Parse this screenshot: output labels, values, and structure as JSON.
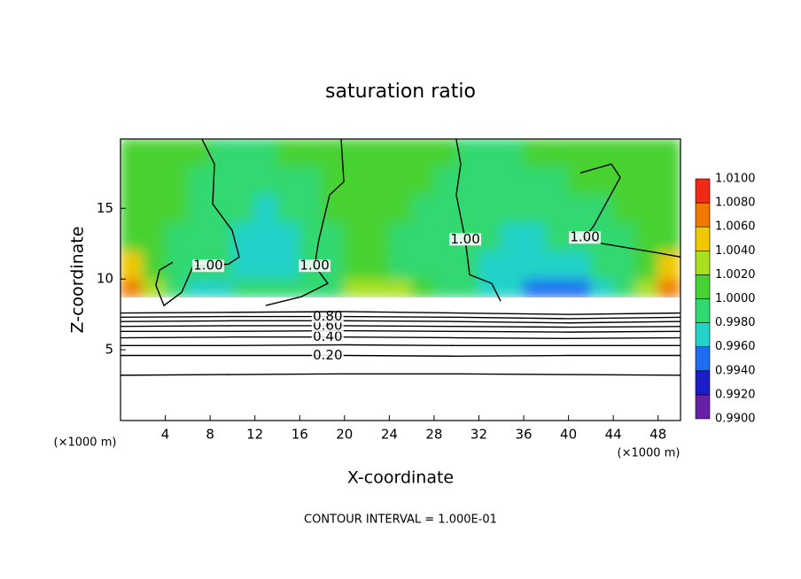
{
  "chart_data": {
    "type": "contour",
    "title": "saturation ratio",
    "x_label": "X-coordinate",
    "y_label": "Z-coordinate",
    "x_unit": "(×1000 m)",
    "footnote": "CONTOUR INTERVAL = 1.000E-01",
    "xlim": [
      0,
      50
    ],
    "xticks": [
      4,
      8,
      12,
      16,
      20,
      24,
      28,
      32,
      36,
      40,
      44,
      48
    ],
    "ylim": [
      0,
      19.9
    ],
    "yticks": [
      5,
      10,
      15
    ],
    "colorbar": {
      "levels": [
        {
          "value": 0.99,
          "label": "0.9900"
        },
        {
          "value": 0.992,
          "label": "0.9920"
        },
        {
          "value": 0.994,
          "label": "0.9940"
        },
        {
          "value": 0.996,
          "label": "0.9960"
        },
        {
          "value": 0.998,
          "label": "0.9980"
        },
        {
          "value": 1.0,
          "label": "1.0000"
        },
        {
          "value": 1.002,
          "label": "1.0020"
        },
        {
          "value": 1.004,
          "label": "1.0040"
        },
        {
          "value": 1.006,
          "label": "1.0060"
        },
        {
          "value": 1.008,
          "label": "1.0080"
        },
        {
          "value": 1.01,
          "label": "1.0100"
        }
      ],
      "colors": [
        "#6a1fa8",
        "#1c1cc8",
        "#1e6cf0",
        "#22d2c8",
        "#30d870",
        "#46d232",
        "#a8e020",
        "#f0c800",
        "#f07800",
        "#f02a14"
      ]
    },
    "field": {
      "x_bins": [
        0,
        2,
        4,
        6,
        8,
        10,
        12,
        14,
        16,
        18,
        20,
        22,
        24,
        26,
        28,
        30,
        32,
        34,
        36,
        38,
        40,
        42,
        44,
        46,
        48,
        50
      ],
      "z_bins": [
        8.7,
        10,
        12,
        14,
        16,
        18,
        19.9
      ],
      "values": [
        [
          1.007,
          1.003,
          0.999,
          0.9965,
          0.9975,
          0.9985,
          0.999,
          0.9995,
          0.999,
          0.999,
          1.0025,
          1.0035,
          1.003,
          1.001,
          0.999,
          0.998,
          0.9975,
          0.996,
          0.995,
          0.9945,
          0.995,
          0.9965,
          0.999,
          1.003,
          1.0075
        ],
        [
          1.004,
          1.001,
          0.9995,
          0.9985,
          0.9985,
          0.9975,
          0.997,
          0.9975,
          0.999,
          0.9998,
          1.0002,
          1.0,
          0.9998,
          0.9995,
          0.999,
          0.998,
          0.9975,
          0.9965,
          0.996,
          0.9965,
          0.9975,
          0.9985,
          0.9995,
          1.001,
          1.004
        ],
        [
          1.0002,
          1.0,
          0.9998,
          0.999,
          0.9985,
          0.9972,
          0.9968,
          0.9975,
          0.999,
          0.9998,
          1.0002,
          1.0,
          0.9998,
          0.9998,
          0.9995,
          0.9988,
          0.998,
          0.9975,
          0.9975,
          0.998,
          0.9988,
          0.9995,
          0.9998,
          1.0,
          1.0002
        ],
        [
          1.0,
          1.0002,
          1.0,
          0.9995,
          0.999,
          0.9982,
          0.9978,
          0.9985,
          0.9995,
          1.0,
          1.0002,
          1.0,
          1.0,
          0.9998,
          0.9995,
          0.9992,
          0.9988,
          0.9985,
          0.9985,
          0.999,
          0.9995,
          0.9998,
          1.0,
          1.0,
          1.0
        ],
        [
          1.0,
          1.0002,
          1.0002,
          0.9998,
          0.9995,
          0.9992,
          0.9992,
          0.9995,
          0.9998,
          1.0,
          1.0002,
          1.0,
          1.0,
          1.0,
          0.9998,
          0.9995,
          0.9995,
          0.9992,
          0.9995,
          0.9998,
          1.0,
          1.0,
          1.0,
          1.0,
          1.0
        ],
        [
          1.0,
          1.0,
          1.0002,
          1.0,
          0.9998,
          0.9998,
          0.9998,
          1.0,
          1.0,
          1.0,
          1.0002,
          1.0,
          1.0,
          1.0,
          1.0,
          0.9998,
          0.9998,
          0.9998,
          1.0,
          1.0,
          1.0,
          1.0,
          1.0,
          1.0,
          1.0
        ]
      ]
    },
    "contours": [
      {
        "level": 0.1,
        "x": [
          0,
          10,
          20,
          30,
          40,
          50
        ],
        "z": [
          3.2,
          3.25,
          3.3,
          3.3,
          3.25,
          3.2
        ]
      },
      {
        "level": {
          "value": 0.2,
          "label": "0.20"
        },
        "x": [
          0,
          10,
          20,
          30,
          40,
          50
        ],
        "z": [
          4.6,
          4.6,
          4.6,
          4.55,
          4.6,
          4.6
        ]
      },
      {
        "level": 0.3,
        "x": [
          0,
          10,
          20,
          30,
          40,
          50
        ],
        "z": [
          5.3,
          5.3,
          5.35,
          5.3,
          5.3,
          5.3
        ]
      },
      {
        "level": {
          "value": 0.4,
          "label": "0.40"
        },
        "x": [
          0,
          10,
          20,
          30,
          40,
          50
        ],
        "z": [
          5.85,
          5.9,
          5.9,
          5.85,
          5.8,
          5.85
        ]
      },
      {
        "level": 0.5,
        "x": [
          0,
          10,
          20,
          30,
          40,
          50
        ],
        "z": [
          6.3,
          6.3,
          6.35,
          6.3,
          6.25,
          6.3
        ]
      },
      {
        "level": {
          "value": 0.6,
          "label": "0.60"
        },
        "x": [
          0,
          10,
          20,
          30,
          40,
          50
        ],
        "z": [
          6.65,
          6.7,
          6.7,
          6.65,
          6.6,
          6.65
        ]
      },
      {
        "level": 0.7,
        "x": [
          0,
          10,
          20,
          30,
          40,
          50
        ],
        "z": [
          7.0,
          7.05,
          7.05,
          7.0,
          6.9,
          7.0
        ]
      },
      {
        "level": {
          "value": 0.8,
          "label": "0.80"
        },
        "x": [
          0,
          10,
          20,
          30,
          40,
          50
        ],
        "z": [
          7.3,
          7.35,
          7.35,
          7.3,
          7.2,
          7.3
        ]
      },
      {
        "level": 0.9,
        "x": [
          0,
          10,
          20,
          30,
          40,
          50
        ],
        "z": [
          7.6,
          7.65,
          7.7,
          7.6,
          7.5,
          7.6
        ]
      },
      {
        "level": {
          "value": 1.0,
          "label": "1.00"
        },
        "x": [
          7.28,
          8.39,
          8.23,
          9.97,
          10.6,
          9.65,
          7.83,
          6.49,
          5.46,
          3.88,
          3.16,
          3.48,
          4.67
        ],
        "z": [
          19.88,
          18.13,
          15.31,
          13.44,
          11.56,
          11.06,
          10.94,
          10.94,
          9.06,
          8.13,
          9.56,
          10.63,
          11.19
        ]
      },
      {
        "level": {
          "value": 1.0,
          "label": "1.00"
        },
        "x": [
          19.7,
          19.94,
          18.67,
          17.72,
          17.33,
          18.51,
          16.14,
          12.97
        ],
        "z": [
          19.88,
          16.88,
          15.94,
          12.81,
          10.94,
          9.69,
          8.75,
          8.13
        ]
      },
      {
        "level": {
          "value": 1.0,
          "label": "1.00"
        },
        "x": [
          29.98,
          30.38,
          29.98,
          30.78,
          31.17,
          33.15,
          33.94
        ],
        "z": [
          19.88,
          18.13,
          15.94,
          12.81,
          10.31,
          9.69,
          8.44
        ]
      },
      {
        "level": {
          "value": 1.0,
          "label": "1.00"
        },
        "x": [
          41.06,
          43.83,
          44.62,
          42.25,
          41.46,
          43.04,
          47.78,
          50
        ],
        "z": [
          17.5,
          18.13,
          17.19,
          13.75,
          12.94,
          12.5,
          11.88,
          11.56
        ]
      }
    ]
  }
}
